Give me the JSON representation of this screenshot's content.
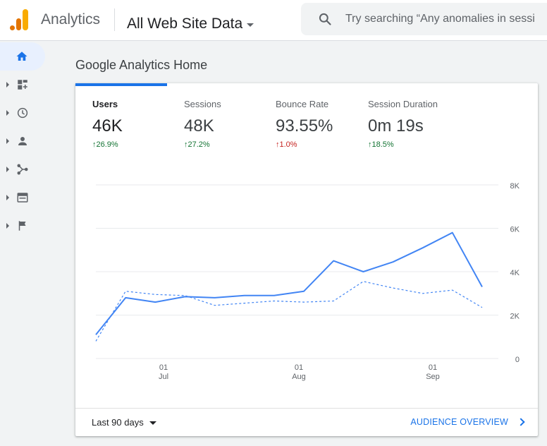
{
  "header": {
    "app_title": "Analytics",
    "property": "All Web Site Data",
    "search_placeholder": "Try searching “Any anomalies in sessi"
  },
  "sidenav": {
    "items": [
      {
        "icon": "home-icon",
        "active": true
      },
      {
        "icon": "customization-icon"
      },
      {
        "icon": "realtime-clock-icon"
      },
      {
        "icon": "audience-person-icon"
      },
      {
        "icon": "acquisition-icon"
      },
      {
        "icon": "behavior-icon"
      },
      {
        "icon": "conversions-flag-icon"
      }
    ]
  },
  "page": {
    "title": "Google Analytics Home"
  },
  "metrics": [
    {
      "label": "Users",
      "value": "46K",
      "delta": "↑26.9%",
      "direction": "up",
      "active": true
    },
    {
      "label": "Sessions",
      "value": "48K",
      "delta": "↑27.2%",
      "direction": "up"
    },
    {
      "label": "Bounce Rate",
      "value": "93.55%",
      "delta": "↑1.0%",
      "direction": "down"
    },
    {
      "label": "Session Duration",
      "value": "0m 19s",
      "delta": "↑18.5%",
      "direction": "up"
    }
  ],
  "chart_data": {
    "type": "line",
    "y_ticks": [
      "8K",
      "6K",
      "4K",
      "2K",
      "0"
    ],
    "ylim": [
      0,
      8000
    ],
    "x_ticks": [
      {
        "day": "01",
        "month": "Jul"
      },
      {
        "day": "01",
        "month": "Aug"
      },
      {
        "day": "01",
        "month": "Sep"
      }
    ],
    "series": [
      {
        "style": "solid",
        "color": "#4285f4",
        "values": [
          1100,
          2800,
          2600,
          2850,
          2800,
          2900,
          2900,
          3100,
          4500,
          4000,
          4450,
          5100,
          5800,
          3300
        ]
      },
      {
        "style": "dashed",
        "color": "#4285f4",
        "values": [
          800,
          3100,
          2950,
          2900,
          2450,
          2550,
          2650,
          2600,
          2650,
          3550,
          3250,
          3000,
          3150,
          2350
        ]
      }
    ]
  },
  "footer": {
    "range_label": "Last 90 days",
    "overview_label": "AUDIENCE OVERVIEW"
  }
}
